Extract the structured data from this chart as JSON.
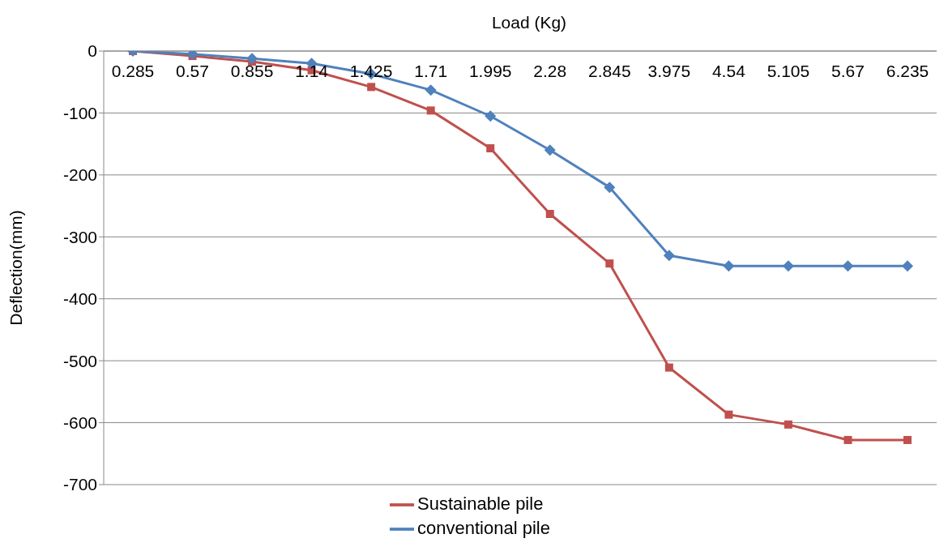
{
  "chart_data": {
    "type": "line",
    "xlabel": "Load (Kg)",
    "ylabel": "Deflection(mm)",
    "categories": [
      "0.285",
      "0.57",
      "0.855",
      "1.14",
      "1.425",
      "1.71",
      "1.995",
      "2.28",
      "2.845",
      "3.975",
      "4.54",
      "5.105",
      "5.67",
      "6.235"
    ],
    "series": [
      {
        "name": "Sustainable pile",
        "color": "#c0504d",
        "marker": "square",
        "values": [
          0,
          -8,
          -17,
          -31,
          -58,
          -96,
          -157,
          -263,
          -343,
          -511,
          -587,
          -603,
          -628,
          -628
        ]
      },
      {
        "name": "conventional pile",
        "color": "#4f81bd",
        "marker": "diamond",
        "values": [
          0,
          -5,
          -12,
          -20,
          -37,
          -63,
          -105,
          -160,
          -220,
          -330,
          -347,
          -347,
          -347,
          -347
        ]
      }
    ],
    "ylim": [
      -700,
      0
    ],
    "yticks": [
      0,
      -100,
      -200,
      -300,
      -400,
      -500,
      -600,
      -700
    ],
    "grid": "y",
    "legend": "bottom"
  }
}
